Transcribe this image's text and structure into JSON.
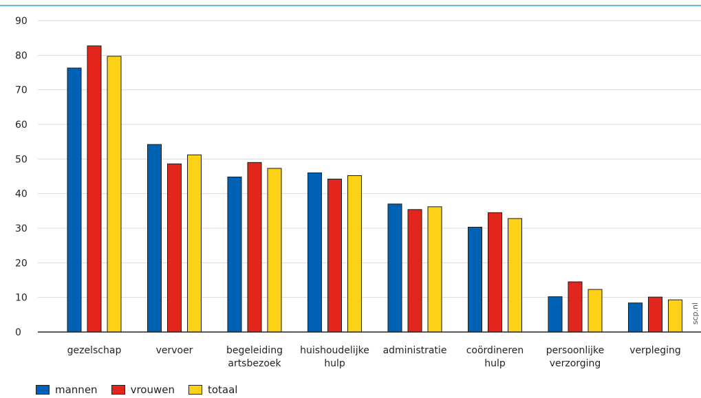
{
  "chart_data": {
    "type": "bar",
    "categories": [
      [
        "gezelschap"
      ],
      [
        "vervoer"
      ],
      [
        "begeleiding",
        "artsbezoek"
      ],
      [
        "huishoudelijke",
        "hulp"
      ],
      [
        "administratie"
      ],
      [
        "coördineren",
        "hulp"
      ],
      [
        "persoonlijke",
        "verzorging"
      ],
      [
        "verpleging"
      ]
    ],
    "series": [
      {
        "name": "mannen",
        "color": "#0062b4",
        "values": [
          76.3,
          54.2,
          44.8,
          46.0,
          37.0,
          30.3,
          10.2,
          8.4
        ]
      },
      {
        "name": "vrouwen",
        "color": "#e3261c",
        "values": [
          82.7,
          48.6,
          49.0,
          44.2,
          35.4,
          34.5,
          14.5,
          10.1
        ]
      },
      {
        "name": "totaal",
        "color": "#fdd116",
        "values": [
          79.7,
          51.2,
          47.3,
          45.2,
          36.2,
          32.8,
          12.3,
          9.3
        ]
      }
    ],
    "yticks": [
      0,
      10,
      20,
      30,
      40,
      50,
      60,
      70,
      80,
      90
    ],
    "ylim": [
      0,
      90
    ],
    "grid": true,
    "legend_position": "bottom-left",
    "title": "",
    "xlabel": "",
    "ylabel": ""
  },
  "side_mark": "scp.nl"
}
